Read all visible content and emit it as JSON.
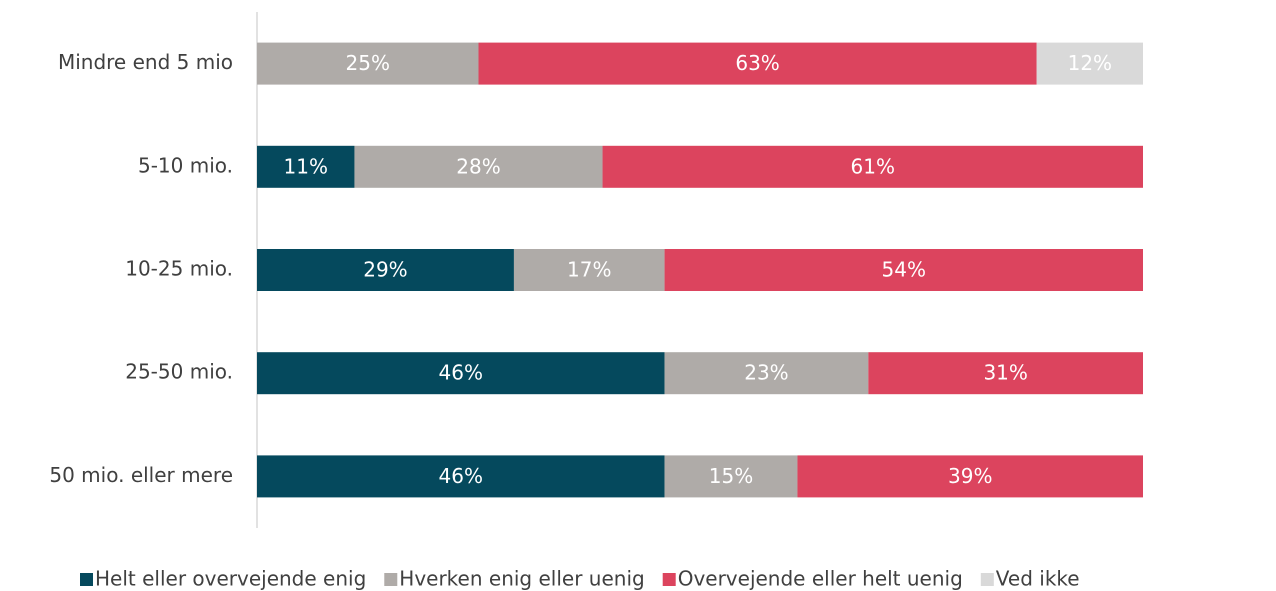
{
  "chart_data": {
    "type": "stacked_bar_horizontal",
    "categories": [
      "Mindre end 5 mio",
      "5-10 mio.",
      "10-25 mio.",
      "25-50 mio.",
      "50 mio. eller mere"
    ],
    "xlim": [
      0,
      100
    ],
    "legend": "bottom",
    "series": [
      {
        "name": "Helt eller overvejende enig",
        "color": "#05495d",
        "values": [
          0,
          11,
          29,
          46,
          46
        ],
        "value_labels": [
          null,
          "11%",
          "29%",
          "46%",
          "46%"
        ]
      },
      {
        "name": "Hverken enig eller uenig",
        "color": "#afaba8",
        "values": [
          25,
          28,
          17,
          23,
          15
        ],
        "value_labels": [
          "25%",
          "28%",
          "17%",
          "23%",
          "15%"
        ]
      },
      {
        "name": "Overvejende eller helt uenig",
        "color": "#dc445e",
        "values": [
          63,
          61,
          54,
          31,
          39
        ],
        "value_labels": [
          "63%",
          "61%",
          "54%",
          "31%",
          "39%"
        ]
      },
      {
        "name": "Ved ikke",
        "color": "#d9d9d9",
        "values": [
          12,
          0,
          0,
          0,
          0
        ],
        "value_labels": [
          "12%",
          null,
          null,
          null,
          null
        ]
      }
    ]
  }
}
